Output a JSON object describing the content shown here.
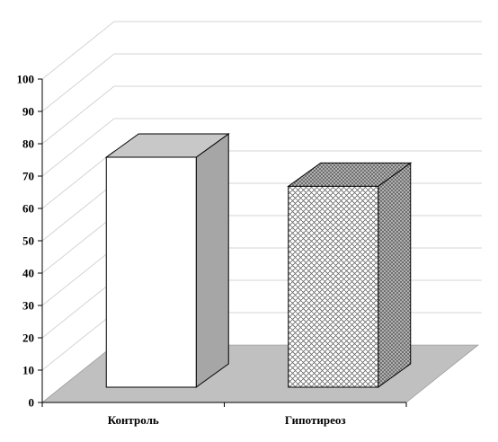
{
  "chart_data": {
    "type": "bar",
    "categories": [
      "Контроль",
      "Гипотиреоз"
    ],
    "values": [
      80,
      71
    ],
    "title": "",
    "xlabel": "",
    "ylabel": "",
    "ylim": [
      0,
      100
    ],
    "yticks": [
      0,
      10,
      20,
      30,
      40,
      50,
      60,
      70,
      80,
      90,
      100
    ],
    "grid": true,
    "legend": "none",
    "style": "3d",
    "colors": {
      "floor": "#c0c0c0",
      "bar1_front": "#ffffff",
      "bar1_side": "#a6a6a6",
      "bar1_top": "#c8c8c8",
      "bar2_pattern": "crosshatch",
      "gridline": "#d4d4d4"
    }
  }
}
